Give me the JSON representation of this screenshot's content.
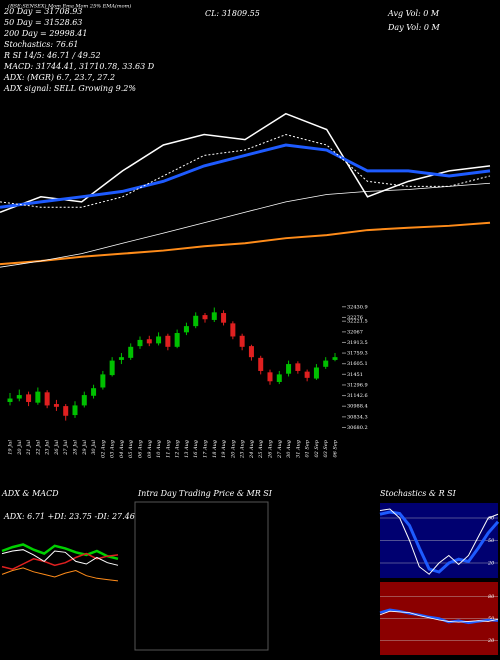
{
  "header": {
    "title": "(BSE:SENSEX) Mom Ema Mom 25% EMA(mom)",
    "close": "CL: 31809.55",
    "avg_vol": "Avg Vol: 0  M",
    "day_vol": "Day Vol: 0  M"
  },
  "indicators": [
    "20 Day = 31708.93",
    "50 Day = 31528.63",
    "200 Day = 29998.41",
    "Stochastics: 76.61",
    "R   SI 14/5: 46.71 / 49.52",
    "MACD: 31744.41, 31710.78, 33.63 D",
    "ADX:  (MGR) 6.7, 23.7, 27.2",
    "ADX  signal: SELL Growing 9.2%"
  ],
  "panels": {
    "adx_macd": "ADX & MACD",
    "adx_readout": "ADX: 6.71 +DI: 23.75 -DI: 27.46",
    "intraday": "Intra Day Trading Price & MR   SI",
    "stoch": "Stochastics & R   SI"
  },
  "chart_data": [
    {
      "type": "candlestick",
      "x": [
        "19 Jul",
        "20 Jul",
        "21 Jul",
        "22 Jul",
        "23 Jul",
        "26 Jul",
        "27 Jul",
        "28 Jul",
        "29 Jul",
        "30 Jul",
        "02 Aug",
        "03 Aug",
        "04 Aug",
        "05 Aug",
        "06 Aug",
        "09 Aug",
        "10 Aug",
        "11 Aug",
        "12 Aug",
        "13 Aug",
        "16 Aug",
        "17 Aug",
        "18 Aug",
        "19 Aug",
        "20 Aug",
        "23 Aug",
        "24 Aug",
        "25 Aug",
        "26 Aug",
        "27 Aug",
        "30 Aug",
        "31 Aug",
        "01 Sep",
        "02 Sep",
        "03 Sep",
        "06 Sep"
      ],
      "open": [
        31050,
        31100,
        31160,
        31040,
        31190,
        31020,
        30990,
        30860,
        31000,
        31140,
        31260,
        31440,
        31660,
        31690,
        31860,
        31960,
        31900,
        32010,
        31850,
        32060,
        32150,
        32310,
        32240,
        32340,
        32190,
        32010,
        31860,
        31690,
        31480,
        31340,
        31460,
        31610,
        31490,
        31390,
        31560,
        31660
      ],
      "high": [
        31180,
        31230,
        31200,
        31260,
        31220,
        31080,
        31020,
        31060,
        31200,
        31300,
        31500,
        31700,
        31760,
        31900,
        32000,
        32010,
        32060,
        32040,
        32100,
        32200,
        32350,
        32340,
        32420,
        32380,
        32220,
        32040,
        31880,
        31720,
        31520,
        31500,
        31650,
        31640,
        31520,
        31600,
        31700,
        31760
      ],
      "low": [
        31000,
        31060,
        30990,
        31010,
        30960,
        30920,
        30780,
        30820,
        30970,
        31100,
        31230,
        31420,
        31600,
        31660,
        31820,
        31860,
        31870,
        31800,
        31830,
        32020,
        32120,
        32200,
        32210,
        32160,
        31960,
        31800,
        31650,
        31450,
        31300,
        31310,
        31420,
        31460,
        31350,
        31370,
        31530,
        31640
      ],
      "close": [
        31100,
        31150,
        31050,
        31200,
        31000,
        30980,
        30850,
        31000,
        31150,
        31250,
        31450,
        31650,
        31700,
        31850,
        31950,
        31900,
        32000,
        31850,
        32050,
        32150,
        32300,
        32250,
        32350,
        32200,
        32000,
        31850,
        31700,
        31500,
        31350,
        31450,
        31600,
        31500,
        31400,
        31550,
        31650,
        31700
      ],
      "ylim": [
        30600,
        32500
      ],
      "yticks": [
        32430.9,
        32276,
        32221.5,
        32067,
        31913.5,
        31759.3,
        31605.1,
        31451,
        31296.9,
        31142.6,
        30988.4,
        30834.3,
        30680.2
      ],
      "up_color": "#00c000",
      "down_color": "#e02020"
    },
    {
      "type": "line",
      "ylim": [
        26000,
        33500
      ],
      "series": [
        {
          "color": "#ffffff",
          "width": 1.5,
          "values": [
            28010,
            28410,
            28280,
            29080,
            29750,
            30020,
            29890,
            30560,
            30150,
            28410,
            28810,
            29080,
            29210
          ]
        },
        {
          "color": "#1e5bff",
          "width": 3,
          "values": [
            28140,
            28280,
            28410,
            28550,
            28810,
            29210,
            29480,
            29750,
            29620,
            29080,
            29080,
            28950,
            29080
          ]
        },
        {
          "color": "#ffffff",
          "width": 1,
          "dash": true,
          "values": [
            28280,
            28140,
            28140,
            28410,
            28950,
            29480,
            29620,
            30020,
            29750,
            28810,
            28680,
            28680,
            28950
          ]
        },
        {
          "color": "#ff8c1a",
          "width": 2,
          "values": [
            26670,
            26750,
            26860,
            26940,
            27020,
            27130,
            27210,
            27340,
            27420,
            27550,
            27610,
            27660,
            27740
          ]
        },
        {
          "color": "#ffffff",
          "width": 0.8,
          "values": [
            26590,
            26750,
            26940,
            27210,
            27470,
            27740,
            28010,
            28280,
            28470,
            28550,
            28600,
            28680,
            28760
          ]
        }
      ]
    },
    {
      "type": "line",
      "ylim": [
        0,
        50
      ],
      "series": [
        {
          "color": "#00d000",
          "width": 2.5,
          "values": [
            30,
            33,
            35,
            31,
            28,
            34,
            32,
            29,
            27,
            30,
            26,
            24
          ]
        },
        {
          "color": "#e02020",
          "width": 1.5,
          "values": [
            18,
            16,
            20,
            24,
            22,
            19,
            21,
            25,
            28,
            24,
            26,
            27
          ]
        },
        {
          "color": "#ff8c1a",
          "width": 1,
          "values": [
            12,
            15,
            17,
            14,
            12,
            10,
            13,
            15,
            11,
            9,
            8,
            7
          ]
        },
        {
          "color": "#ffffff",
          "width": 1,
          "values": [
            28,
            30,
            31,
            27,
            22,
            30,
            29,
            22,
            20,
            25,
            21,
            19
          ]
        }
      ]
    },
    {
      "type": "line",
      "ylim": [
        0,
        100
      ],
      "yticks": [
        20,
        50,
        80
      ],
      "background": "#000070",
      "series": [
        {
          "color": "#1e5bff",
          "width": 3,
          "values": [
            85,
            88,
            86,
            70,
            40,
            12,
            8,
            20,
            25,
            22,
            40,
            60,
            75
          ]
        },
        {
          "color": "#ffffff",
          "width": 1,
          "values": [
            90,
            92,
            80,
            50,
            15,
            5,
            20,
            30,
            18,
            30,
            55,
            80,
            85
          ]
        }
      ]
    },
    {
      "type": "line",
      "ylim": [
        0,
        100
      ],
      "yticks": [
        20,
        50,
        80
      ],
      "background": "#8b0000",
      "series": [
        {
          "color": "#1e5bff",
          "width": 2.5,
          "values": [
            58,
            62,
            60,
            57,
            55,
            52,
            50,
            45,
            47,
            44,
            46,
            48,
            47
          ]
        },
        {
          "color": "#ffffff",
          "width": 0.8,
          "values": [
            55,
            60,
            59,
            58,
            54,
            51,
            48,
            46,
            45,
            46,
            47,
            46,
            49
          ]
        }
      ]
    }
  ]
}
